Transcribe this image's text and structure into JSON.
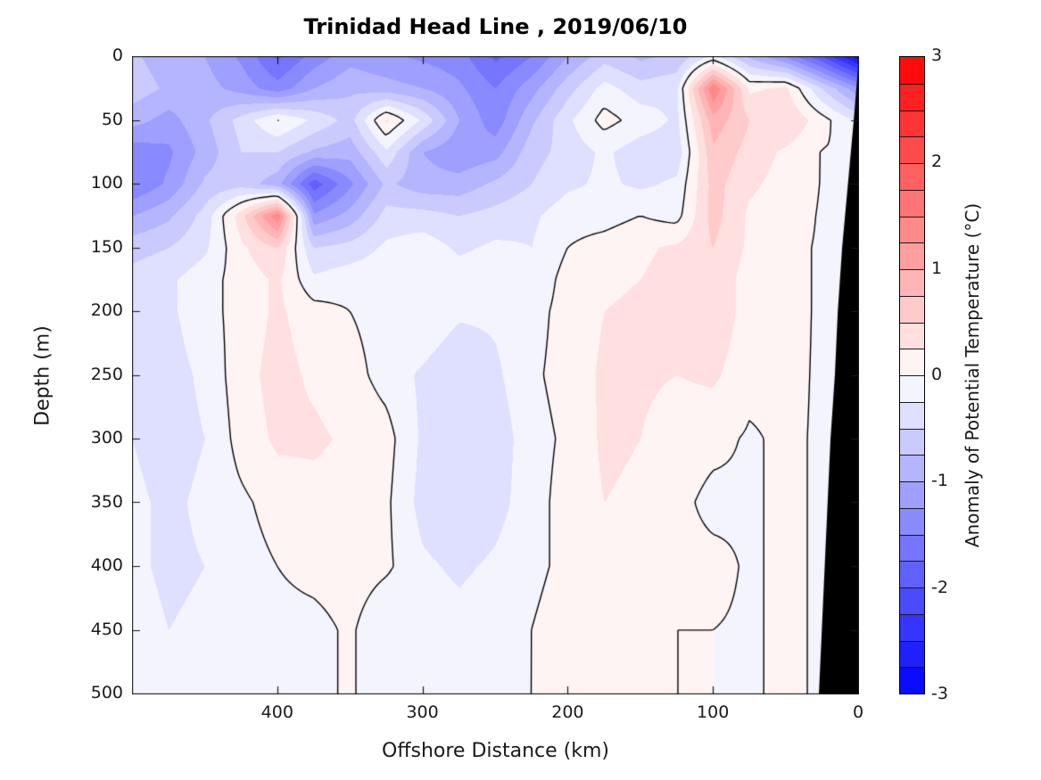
{
  "figure": {
    "title": "Trinidad Head Line , 2019/06/10",
    "background": "#ffffff"
  },
  "chart_data": {
    "type": "heatmap",
    "subtype": "filled-contour-section",
    "title": "Trinidad Head Line , 2019/06/10",
    "xlabel": "Offshore Distance (km)",
    "ylabel": "Depth (m)",
    "x_axis": {
      "min": 0,
      "max": 500,
      "reversed": true,
      "ticks": [
        400,
        300,
        200,
        100,
        0
      ]
    },
    "y_axis": {
      "min": 0,
      "max": 500,
      "inverted": true,
      "ticks": [
        0,
        50,
        100,
        150,
        200,
        250,
        300,
        350,
        400,
        450,
        500
      ]
    },
    "colorbar": {
      "label": "Anomaly of Potential Temperature (°C)",
      "min": -3,
      "max": 3,
      "level_step": 0.25,
      "ticks": [
        3,
        2,
        1,
        0,
        -1,
        -2,
        -3
      ],
      "positive_color": "#ff0000",
      "negative_color": "#0000ff",
      "zero_color": "#ffffff"
    },
    "contour_line_levels": [
      0
    ],
    "contour_line_color": "#000000",
    "coast_color": "#000000",
    "coast_mask_km_depth": [
      [
        0,
        8
      ],
      [
        3,
        50
      ],
      [
        7,
        100
      ],
      [
        11,
        150
      ],
      [
        14,
        200
      ],
      [
        16,
        250
      ],
      [
        19,
        300
      ],
      [
        21,
        350
      ],
      [
        23,
        400
      ],
      [
        25,
        450
      ],
      [
        27,
        500
      ],
      [
        0,
        500
      ]
    ],
    "grid": {
      "x_km": [
        500,
        475,
        450,
        425,
        400,
        375,
        350,
        325,
        300,
        275,
        250,
        225,
        200,
        175,
        150,
        125,
        100,
        75,
        50,
        25,
        0
      ],
      "depth_m": [
        0,
        25,
        50,
        75,
        100,
        125,
        150,
        175,
        200,
        250,
        300,
        350,
        400,
        450,
        500
      ],
      "anomaly_degC": [
        [
          -0.7,
          -0.9,
          -1.0,
          -1.3,
          -1.8,
          -1.4,
          -1.1,
          -1.2,
          -1.3,
          -1.4,
          -1.8,
          -1.5,
          -1.0,
          -0.6,
          -0.8,
          -0.7,
          -0.2,
          -0.8,
          -1.3,
          -2.0,
          -2.9
        ],
        [
          -0.6,
          -0.8,
          -0.9,
          -1.1,
          -1.4,
          -1.0,
          -0.8,
          -0.9,
          -1.0,
          -1.2,
          -1.5,
          -1.1,
          -0.6,
          -0.15,
          -0.4,
          -0.3,
          1.5,
          0.2,
          0.3,
          -0.5,
          -1.2
        ],
        [
          -0.9,
          -1.1,
          -0.8,
          -0.4,
          0.02,
          -0.3,
          -0.6,
          0.3,
          -0.3,
          -1.0,
          -1.4,
          -0.8,
          -0.3,
          0.1,
          -0.1,
          -0.3,
          0.9,
          0.5,
          0.5,
          0.1,
          -0.3
        ],
        [
          -1.4,
          -1.3,
          -0.9,
          -0.5,
          -0.5,
          -0.8,
          -0.9,
          -0.3,
          -1.0,
          -1.2,
          -1.1,
          -0.6,
          -0.4,
          -0.2,
          -0.4,
          -0.4,
          0.7,
          0.4,
          0.2,
          -0.01,
          -0.01
        ],
        [
          -1.5,
          -1.2,
          -0.7,
          -0.6,
          -0.9,
          -1.9,
          -1.3,
          -0.7,
          -0.9,
          -0.9,
          -0.7,
          -0.5,
          -0.3,
          -0.2,
          -0.3,
          -0.2,
          0.6,
          0.3,
          0.15,
          -0.01,
          -0.01
        ],
        [
          -1.0,
          -0.8,
          -0.4,
          0.4,
          1.45,
          -1.2,
          -0.9,
          -0.4,
          -0.4,
          -0.5,
          -0.4,
          -0.3,
          -0.1,
          -0.1,
          0.0,
          -0.1,
          0.6,
          0.2,
          0.1,
          -0.02,
          -0.02
        ],
        [
          -0.6,
          -0.5,
          -0.3,
          0.2,
          0.5,
          -0.5,
          -0.4,
          -0.2,
          -0.1,
          -0.3,
          -0.2,
          -0.25,
          0.0,
          0.1,
          0.2,
          0.3,
          0.5,
          0.2,
          0.05,
          -0.02,
          -0.02
        ],
        [
          -0.4,
          -0.3,
          -0.1,
          0.1,
          0.3,
          -0.2,
          -0.1,
          -0.1,
          0.0,
          -0.1,
          -0.1,
          -0.2,
          0.1,
          0.2,
          0.25,
          0.35,
          0.5,
          0.1,
          0.05,
          -0.02,
          -0.02
        ],
        [
          -0.3,
          -0.3,
          -0.1,
          0.1,
          0.3,
          0.1,
          0.0,
          -0.1,
          0.0,
          -0.2,
          -0.2,
          -0.1,
          0.1,
          0.25,
          0.3,
          0.3,
          0.5,
          0.1,
          0.05,
          -0.02,
          -0.02
        ],
        [
          -0.3,
          -0.35,
          -0.2,
          0.15,
          0.35,
          0.2,
          0.1,
          -0.1,
          -0.3,
          -0.5,
          -0.3,
          -0.05,
          0.1,
          0.3,
          0.3,
          0.25,
          0.3,
          0.05,
          0.04,
          -0.02,
          -0.02
        ],
        [
          -0.25,
          -0.35,
          -0.25,
          0.1,
          0.3,
          0.3,
          0.2,
          0.1,
          -0.3,
          -0.5,
          -0.4,
          -0.1,
          0.05,
          0.3,
          0.25,
          0.1,
          0.05,
          -0.02,
          0.03,
          -0.02,
          -0.02
        ],
        [
          -0.2,
          -0.3,
          -0.2,
          -0.05,
          0.1,
          0.15,
          0.15,
          0.05,
          -0.35,
          -0.5,
          -0.35,
          -0.1,
          0.1,
          0.25,
          0.2,
          0.05,
          -0.05,
          -0.02,
          0.03,
          -0.02,
          -0.02
        ],
        [
          -0.2,
          -0.3,
          -0.25,
          -0.1,
          0.0,
          0.1,
          0.15,
          0.05,
          -0.2,
          -0.3,
          -0.2,
          -0.05,
          0.05,
          0.25,
          0.15,
          0.05,
          0.05,
          -0.02,
          0.03,
          -0.02,
          -0.02
        ],
        [
          -0.15,
          -0.25,
          -0.2,
          -0.15,
          -0.1,
          -0.1,
          0.05,
          -0.25,
          -0.1,
          -0.15,
          -0.1,
          0.0,
          0.1,
          0.25,
          0.15,
          0.0,
          0.0,
          -0.02,
          0.03,
          -0.02,
          -0.02
        ],
        [
          -0.1,
          -0.2,
          -0.15,
          -0.1,
          -0.05,
          -0.1,
          0.05,
          -0.25,
          -0.05,
          -0.1,
          -0.05,
          0.0,
          0.1,
          0.25,
          0.1,
          0.0,
          0.0,
          -0.02,
          0.03,
          -0.02,
          -0.02
        ]
      ]
    }
  }
}
